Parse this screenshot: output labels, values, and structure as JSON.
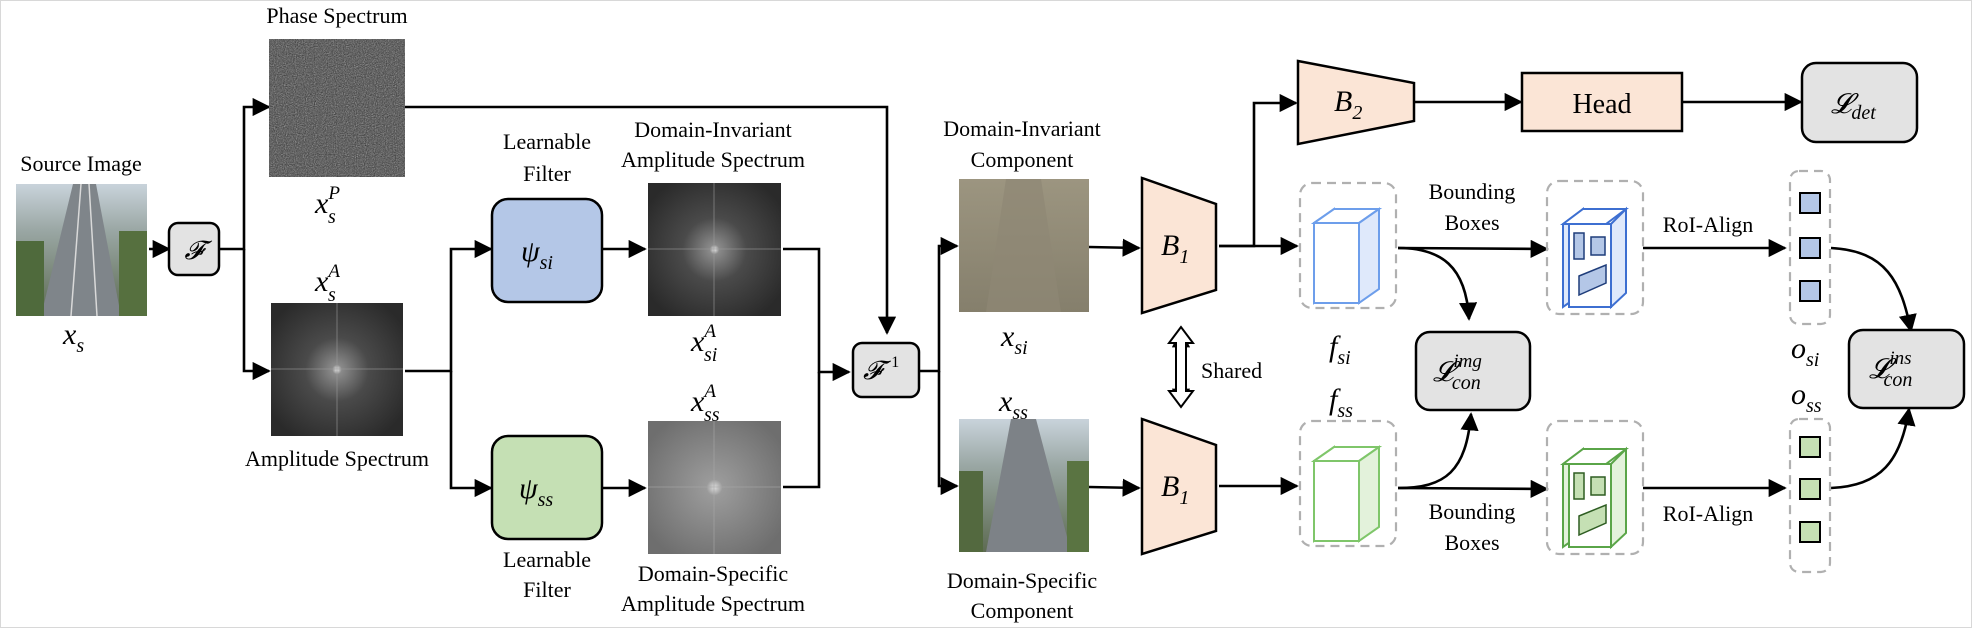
{
  "labels": {
    "source_image": "Source Image",
    "phase_spectrum": "Phase Spectrum",
    "amplitude_spectrum": "Amplitude Spectrum",
    "learnable_filter_top_l1": "Learnable",
    "learnable_filter_top_l2": "Filter",
    "learnable_filter_bottom_l1": "Learnable",
    "learnable_filter_bottom_l2": "Filter",
    "di_amp_l1": "Domain-Invariant",
    "di_amp_l2": "Amplitude Spectrum",
    "ds_amp_l1": "Domain-Specific",
    "ds_amp_l2": "Amplitude Spectrum",
    "di_comp_l1": "Domain-Invariant",
    "di_comp_l2": "Component",
    "ds_comp_l1": "Domain-Specific",
    "ds_comp_l2": "Component",
    "shared": "Shared",
    "bbox_top_l1": "Bounding",
    "bbox_top_l2": "Boxes",
    "bbox_bottom_l1": "Bounding",
    "bbox_bottom_l2": "Boxes",
    "roi_top": "RoI-Align",
    "roi_bottom": "RoI-Align",
    "head": "Head"
  },
  "math": {
    "fourier": "𝓕",
    "inv_fourier_base": "𝓕",
    "inv_fourier_sup": "−1",
    "xs_base": "x",
    "xs_sub": "s",
    "xsP_sup": "P",
    "xsA_sup": "A",
    "psi_si_base": "ψ",
    "psi_si_sub": "si",
    "psi_ss_base": "ψ",
    "psi_ss_sub": "ss",
    "xsiA_sub": "si",
    "xssA_sub": "ss",
    "amp_sup": "A",
    "xsi_sub": "si",
    "xss_sub": "ss",
    "b1_top_base": "B",
    "b1_top_sub": "1",
    "b1_bottom_base": "B",
    "b1_bottom_sub": "1",
    "b2_base": "B",
    "b2_sub": "2",
    "f_base": "f",
    "fsi_sub": "si",
    "fss_sub": "ss",
    "o_base": "o",
    "osi_sub": "si",
    "oss_sub": "ss",
    "loss_base": "𝓛",
    "l_det_sub": "det",
    "l_img_sup": "img",
    "l_img_sub": "con",
    "l_ins_sup": "ins",
    "l_ins_sub": "con"
  },
  "colors": {
    "filter_si": "#b4c7e7",
    "filter_ss": "#c5e0b4",
    "backbone": "#fbe5d6",
    "gray_box": "#e3e3e3",
    "feat_blue": "#6d9eeb",
    "feat_green": "#7fc66a"
  }
}
